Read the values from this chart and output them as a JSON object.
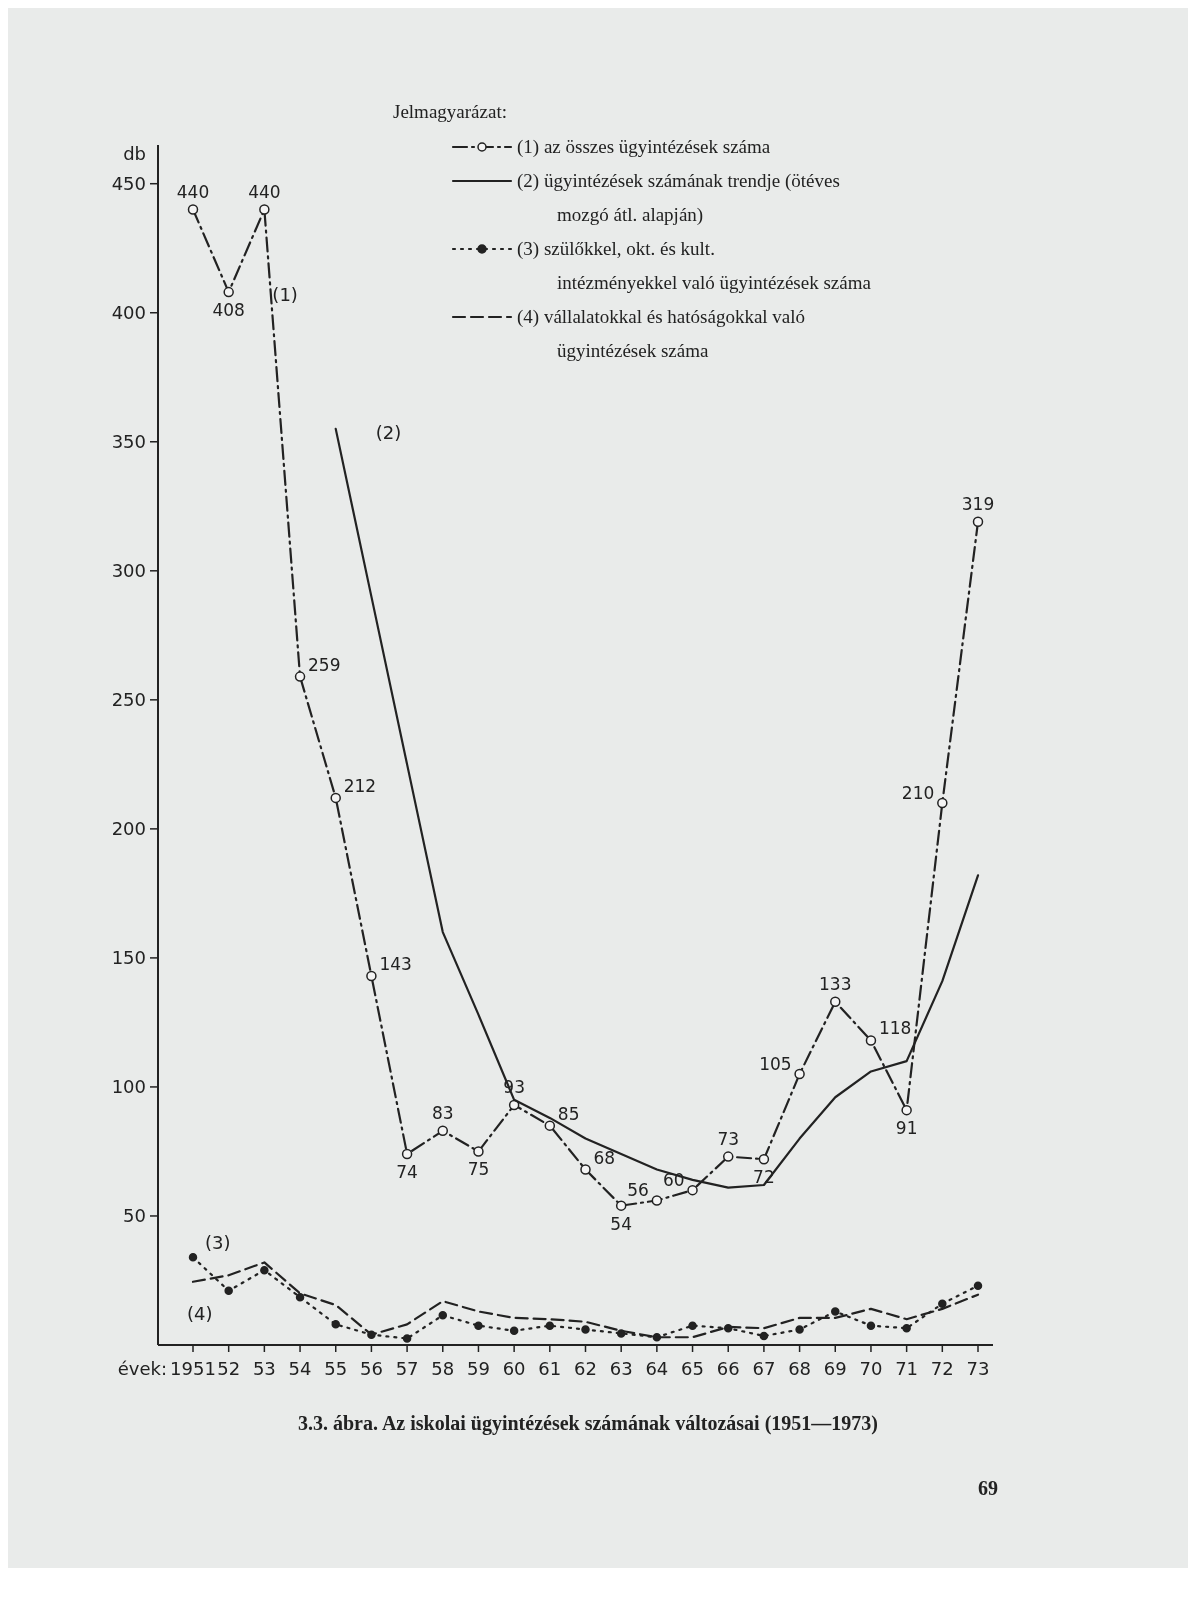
{
  "chart_data": {
    "type": "line",
    "title": "3.3. ábra. Az iskolai ügyintézések számának változásai (1951—1973)",
    "xlabel": "évek:",
    "ylabel": "db",
    "legend_title": "Jelmagyarázat:",
    "legend": "top",
    "grid": false,
    "categories": [
      "1951",
      "52",
      "53",
      "54",
      "55",
      "56",
      "57",
      "58",
      "59",
      "60",
      "61",
      "62",
      "63",
      "64",
      "65",
      "66",
      "67",
      "68",
      "69",
      "70",
      "71",
      "72",
      "73"
    ],
    "ylim": [
      0,
      465
    ],
    "yticks": [
      50,
      100,
      150,
      200,
      250,
      300,
      350,
      400,
      450
    ],
    "series": [
      {
        "name": "(1) az összes ügyintézések száma",
        "color": "#222222",
        "line_style": "dashdot",
        "marker": "circle",
        "values": [
          440,
          408,
          440,
          259,
          212,
          143,
          74,
          83,
          75,
          93,
          85,
          68,
          54,
          56,
          60,
          73,
          72,
          105,
          133,
          118,
          91,
          210,
          319
        ],
        "value_labels": [
          "440",
          "408",
          "440",
          "259",
          "212",
          "143",
          "74",
          "83",
          "75",
          "93",
          "85",
          "68",
          "54",
          "56",
          "60",
          "73",
          "72",
          "105",
          "133",
          "118",
          "91",
          "210",
          "319"
        ]
      },
      {
        "name": "(2) ügyintézések számának trendje (ötéves mozgó átl. alapján)",
        "color": "#222222",
        "line_style": "solid",
        "marker": "none",
        "values": [
          null,
          null,
          null,
          null,
          355,
          290,
          225,
          160,
          128,
          95,
          88,
          80,
          74,
          68,
          64,
          61,
          62,
          80,
          96,
          106,
          110,
          141,
          182
        ]
      },
      {
        "name": "(3) szülőkkel, okt. és kult. intézményekkel való ügyintézések száma",
        "color": "#222222",
        "line_style": "dotted",
        "marker": "circle",
        "values": [
          34,
          21,
          29,
          18.5,
          8,
          4,
          2.5,
          11.5,
          7.5,
          5.5,
          7.5,
          6,
          4.5,
          3,
          7.5,
          6.5,
          3.5,
          6,
          13,
          7.5,
          6.5,
          16,
          23
        ]
      },
      {
        "name": "(4) vállalatokkal és hatóságokkal való ügyintézések száma",
        "color": "#222222",
        "line_style": "dashed",
        "marker": "none",
        "values": [
          24.5,
          27,
          32,
          20,
          15.5,
          4,
          8,
          17,
          13,
          10.5,
          10,
          9,
          5.5,
          3,
          3,
          7,
          6.5,
          10.5,
          10.5,
          14,
          10,
          14,
          19.5
        ]
      }
    ],
    "annotations": [
      {
        "text": "(1)",
        "x": "53",
        "y": 420
      },
      {
        "text": "(2)",
        "x": "55",
        "y": 355
      },
      {
        "text": "(3)",
        "x": "1951",
        "y": 34
      },
      {
        "text": "(4)",
        "x": "1951",
        "y": 24.5
      },
      "69"
    ]
  }
}
